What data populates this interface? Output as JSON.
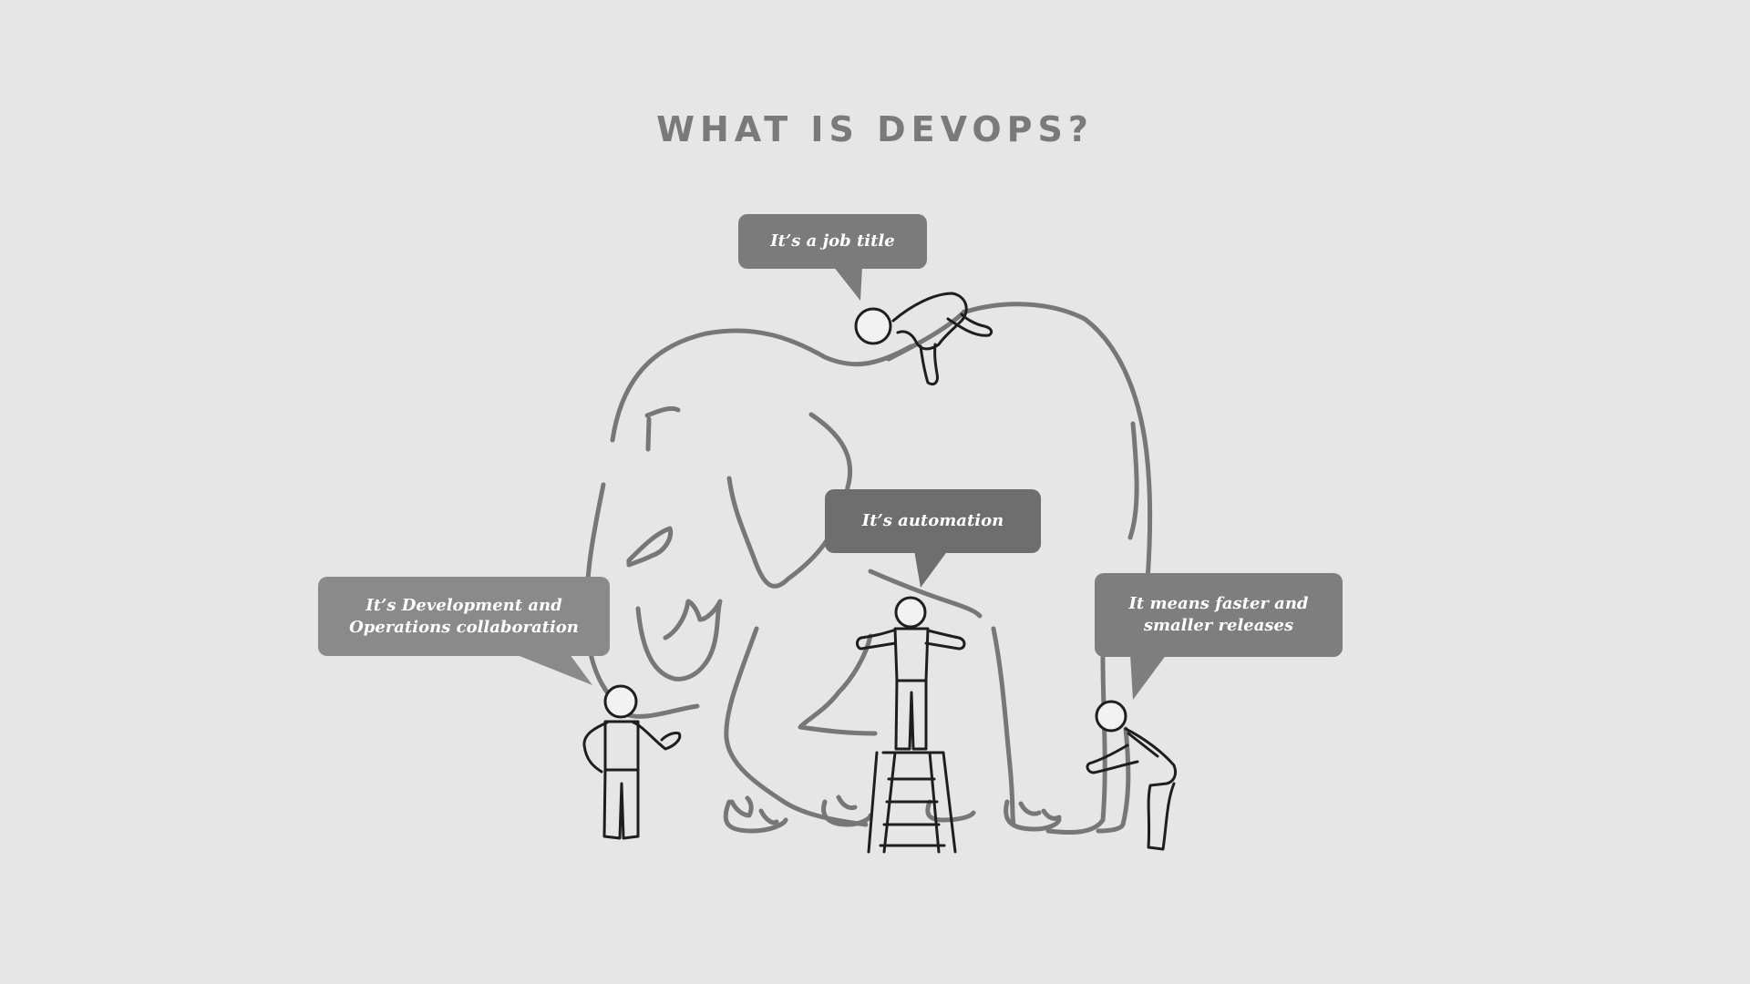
{
  "title": "WHAT IS DEVOPS?",
  "bubbles": {
    "job_title": "It’s a job title",
    "automation": "It’s automation",
    "dev_ops_line1": "It’s Development and",
    "dev_ops_line2": "Operations collaboration",
    "faster_line1": "It means faster and",
    "faster_line2": "smaller releases"
  },
  "colors": {
    "background": "#e6e6e6",
    "title": "#7a7a7a",
    "elephant_outline": "#777777",
    "figure_outline": "#1e1e1e"
  }
}
